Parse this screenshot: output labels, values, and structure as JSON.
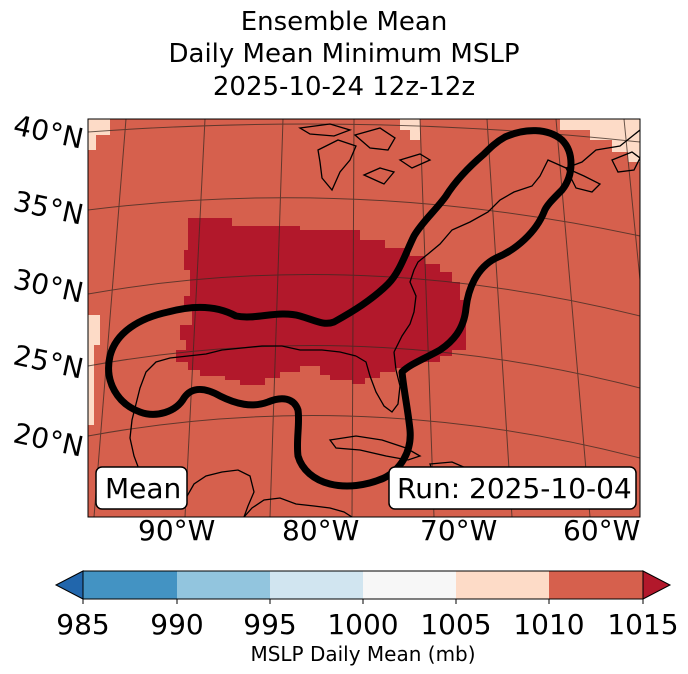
{
  "title": {
    "line1": "Ensemble Mean",
    "line2": "Daily Mean Minimum MSLP",
    "line3": "2025-10-24 12z-12z"
  },
  "map": {
    "lat_labels": [
      "40°N",
      "35°N",
      "30°N",
      "25°N",
      "20°N"
    ],
    "lon_labels": [
      "90°W",
      "80°W",
      "70°W",
      "60°W"
    ],
    "mean_label": "Mean",
    "run_label": "Run: 2025-10-04",
    "colors": {
      "c1010": "#d6604d",
      "c1015": "#b2182b",
      "c1005": "#fddbc7",
      "land_line": "#000000",
      "contour": "#000000"
    }
  },
  "colorbar": {
    "ticks": [
      "985",
      "990",
      "995",
      "1000",
      "1005",
      "1010",
      "1015"
    ],
    "label": "MSLP Daily Mean (mb)",
    "colors": [
      "#4393c3",
      "#92c5de",
      "#d1e5f0",
      "#f7f7f7",
      "#fddbc7",
      "#d6604d"
    ],
    "under_color": "#2166ac",
    "over_color": "#b2182b"
  }
}
